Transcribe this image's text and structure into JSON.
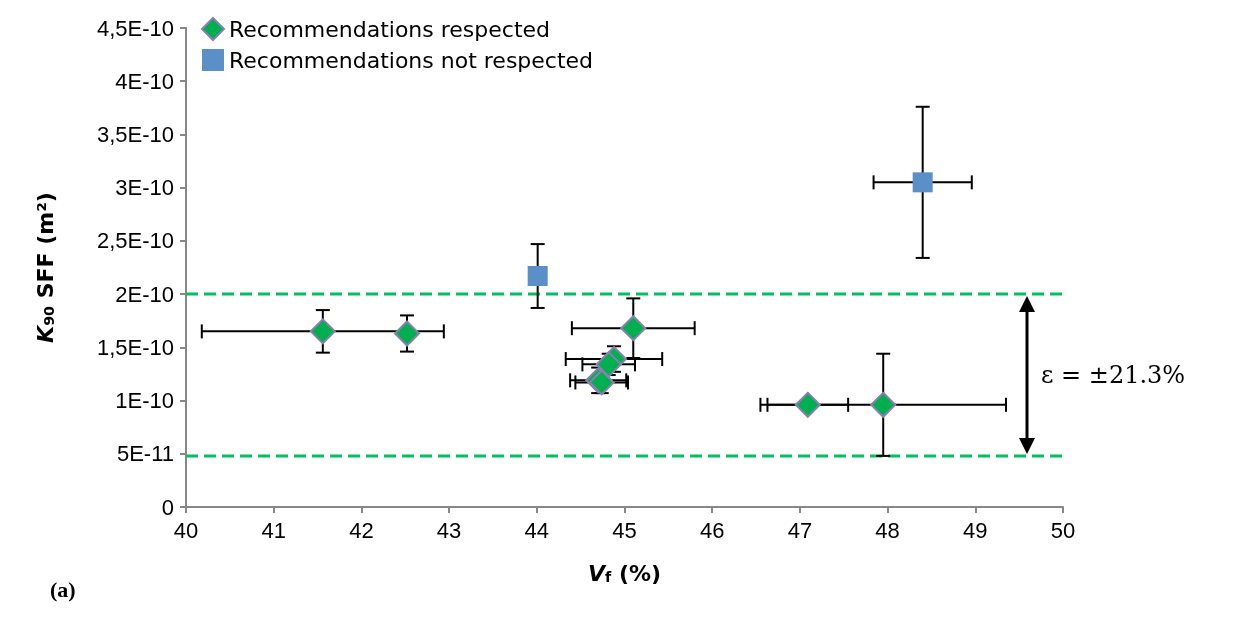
{
  "chart_data": {
    "type": "scatter",
    "xlabel": "V$_{f}$ (%)",
    "ylabel": "K$_{90}$ SFF (m²)",
    "xlim": [
      40,
      50
    ],
    "xticks": [
      40,
      41,
      42,
      43,
      44,
      45,
      46,
      47,
      48,
      49,
      50
    ],
    "ylim": [
      0,
      4.5e-10
    ],
    "yticks": [
      {
        "value": 0,
        "label": "0"
      },
      {
        "value": 5e-11,
        "label": "5E-11"
      },
      {
        "value": 1e-10,
        "label": "1E-10"
      },
      {
        "value": 1.5e-10,
        "label": "1,5E-10"
      },
      {
        "value": 2e-10,
        "label": "2E-10"
      },
      {
        "value": 2.5e-10,
        "label": "2,5E-10"
      },
      {
        "value": 3e-10,
        "label": "3E-10"
      },
      {
        "value": 3.5e-10,
        "label": "3,5E-10"
      },
      {
        "value": 4e-10,
        "label": "4E-10"
      },
      {
        "value": 4.5e-10,
        "label": "4,5E-10"
      }
    ],
    "grid": false,
    "legend": "top left",
    "series": [
      {
        "name": "Recommendations respected",
        "color": "#00b050",
        "marker": "diamond",
        "x": [
          41.56,
          42.52,
          45.1,
          44.88,
          44.82,
          44.7,
          44.74,
          47.09,
          47.95
        ],
        "values": [
          1.65e-10,
          1.63e-10,
          1.68e-10,
          1.39e-10,
          1.34e-10,
          1.19e-10,
          1.17e-10,
          9.6e-11,
          9.6e-11
        ],
        "errors": [
          2e-11,
          1.7e-11,
          2.8e-11,
          1.2e-11,
          1e-11,
          1.2e-11,
          1e-11,
          null,
          4.8e-11
        ],
        "xerrors": [
          1.38,
          null,
          0.7,
          0.55,
          0.3,
          0.32,
          0.3,
          0.46,
          1.4
        ]
      },
      {
        "name": "Recommendations not respected",
        "color": "#5b8fc7",
        "marker": "square",
        "x": [
          44.01,
          48.4
        ],
        "values": [
          2.17e-10,
          3.05e-10
        ],
        "errors": [
          3e-11,
          7.1e-11
        ],
        "xerrors": [
          null,
          0.56
        ]
      }
    ],
    "ref_lines": [
      {
        "axis": "y",
        "value": 2e-10,
        "color": "#00c060",
        "line_style": "dashed"
      },
      {
        "axis": "y",
        "value": 4.8e-11,
        "color": "#00c060",
        "line_style": "dashed"
      }
    ],
    "annotations": [
      "(a)",
      "ε = ±21.3%"
    ]
  }
}
